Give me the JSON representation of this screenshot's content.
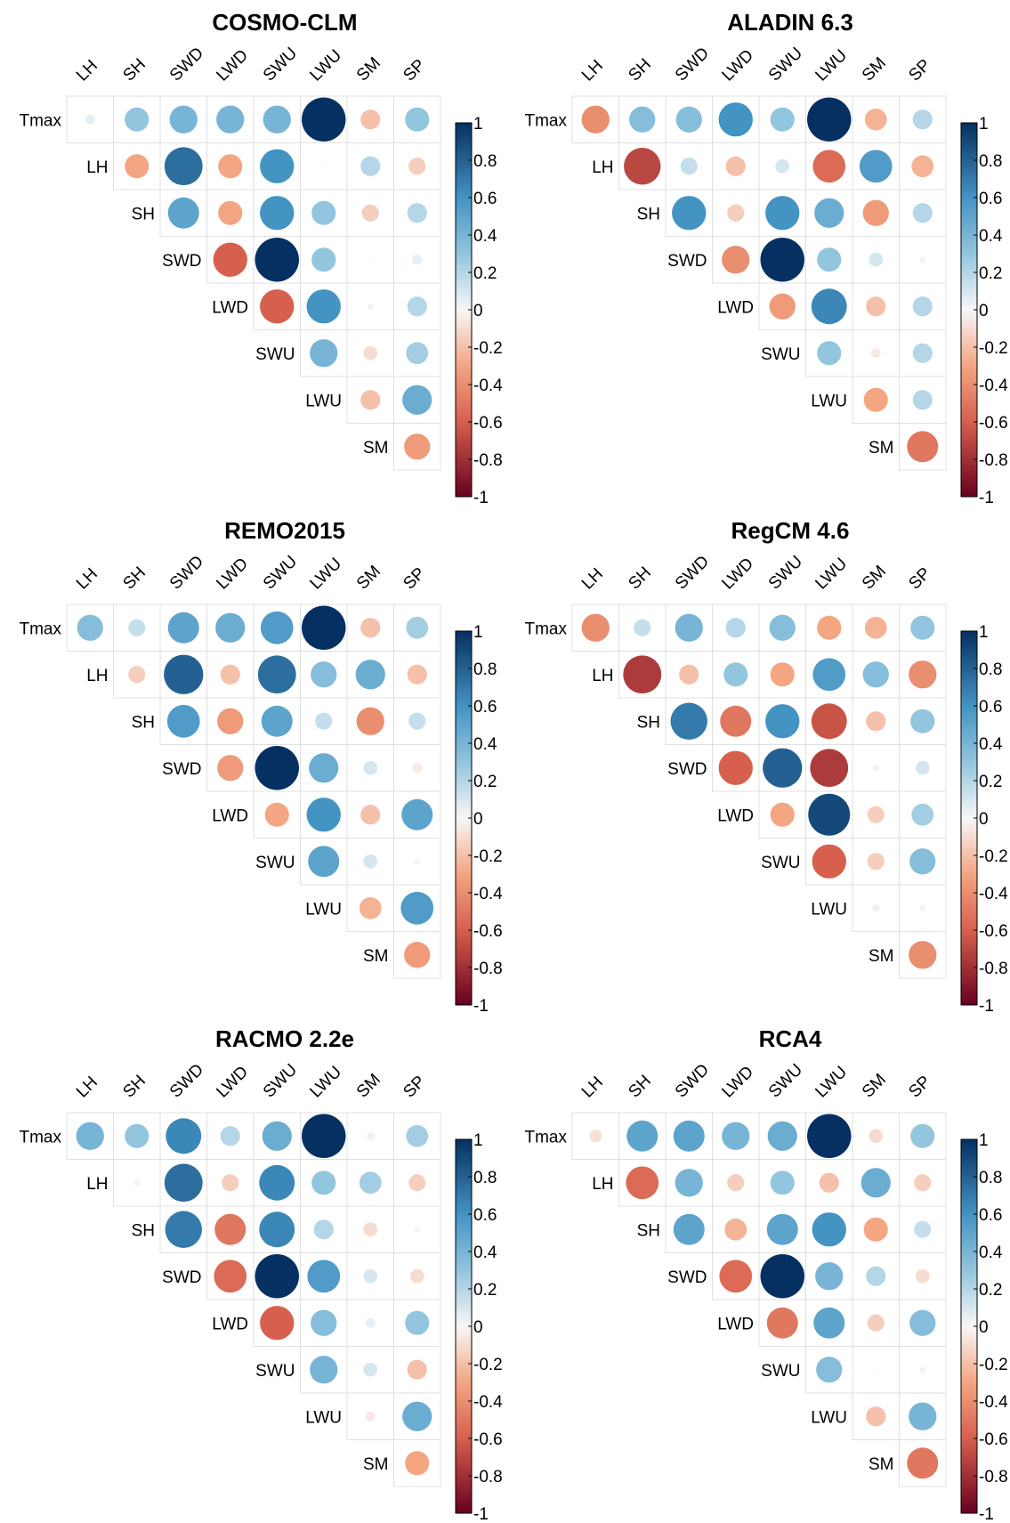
{
  "figure": {
    "variables": [
      "Tmax",
      "LH",
      "SH",
      "SWD",
      "LWD",
      "SWU",
      "LWU",
      "SM",
      "SP"
    ],
    "colorbar_ticks": [
      "1",
      "0.8",
      "0.6",
      "0.4",
      "0.2",
      "0",
      "-0.2",
      "-0.4",
      "-0.6",
      "-0.8",
      "-1"
    ],
    "colors": {
      "negative_end": "#67001F",
      "mid_negative": "#D6604D",
      "light_negative": "#F4A582",
      "zero": "#F7F7F7",
      "light_positive": "#92C5DE",
      "mid_positive": "#4393C3",
      "positive_end": "#053061"
    }
  },
  "chart_data": [
    {
      "type": "heatmap",
      "title": "COSMO-CLM",
      "row_labels": [
        "Tmax",
        "LH",
        "SH",
        "SWD",
        "LWD",
        "SWU",
        "LWU",
        "SM"
      ],
      "col_labels": [
        "LH",
        "SH",
        "SWD",
        "LWD",
        "SWU",
        "LWU",
        "SM",
        "SP"
      ],
      "values": [
        [
          0.05,
          0.3,
          0.4,
          0.4,
          0.4,
          1.0,
          -0.2,
          0.3
        ],
        [
          -0.3,
          0.75,
          -0.3,
          0.6,
          0.0,
          0.2,
          -0.15
        ],
        [
          0.5,
          -0.3,
          0.6,
          0.3,
          -0.15,
          0.2
        ],
        [
          -0.6,
          1.0,
          0.3,
          0.0,
          0.05
        ],
        [
          -0.6,
          0.6,
          0.02,
          0.2
        ],
        [
          0.4,
          -0.1,
          0.25
        ],
        [
          -0.2,
          0.45
        ],
        [
          -0.35
        ]
      ],
      "colorbar_range": [
        -1,
        1
      ]
    },
    {
      "type": "heatmap",
      "title": "ALADIN 6.3",
      "row_labels": [
        "Tmax",
        "LH",
        "SH",
        "SWD",
        "LWD",
        "SWU",
        "LWU",
        "SM"
      ],
      "col_labels": [
        "LH",
        "SH",
        "SWD",
        "LWD",
        "SWU",
        "LWU",
        "SM",
        "SP"
      ],
      "values": [
        [
          -0.4,
          0.35,
          0.35,
          0.6,
          0.3,
          1.0,
          -0.25,
          0.2
        ],
        [
          -0.7,
          0.15,
          -0.2,
          0.1,
          -0.55,
          0.55,
          -0.25
        ],
        [
          0.6,
          -0.15,
          0.6,
          0.45,
          -0.35,
          0.2
        ],
        [
          -0.4,
          1.0,
          0.3,
          0.1,
          0.02
        ],
        [
          -0.35,
          0.65,
          -0.2,
          0.2
        ],
        [
          0.3,
          -0.05,
          0.2
        ],
        [
          -0.3,
          0.2
        ],
        [
          -0.5
        ]
      ],
      "colorbar_range": [
        -1,
        1
      ]
    },
    {
      "type": "heatmap",
      "title": "REMO2015",
      "row_labels": [
        "Tmax",
        "LH",
        "SH",
        "SWD",
        "LWD",
        "SWU",
        "LWU",
        "SM"
      ],
      "col_labels": [
        "LH",
        "SH",
        "SWD",
        "LWD",
        "SWU",
        "LWU",
        "SM",
        "SP"
      ],
      "values": [
        [
          0.35,
          0.15,
          0.5,
          0.45,
          0.55,
          1.0,
          -0.2,
          0.25
        ],
        [
          -0.15,
          0.8,
          -0.2,
          0.75,
          0.35,
          0.45,
          -0.2
        ],
        [
          0.55,
          -0.35,
          0.5,
          0.15,
          -0.4,
          0.15
        ],
        [
          -0.35,
          1.0,
          0.45,
          0.1,
          -0.05
        ],
        [
          -0.3,
          0.6,
          -0.2,
          0.5
        ],
        [
          0.5,
          0.1,
          0.02
        ],
        [
          -0.25,
          0.55
        ],
        [
          -0.35
        ]
      ],
      "colorbar_range": [
        -1,
        1
      ]
    },
    {
      "type": "heatmap",
      "title": "RegCM 4.6",
      "row_labels": [
        "Tmax",
        "LH",
        "SH",
        "SWD",
        "LWD",
        "SWU",
        "LWU",
        "SM"
      ],
      "col_labels": [
        "LH",
        "SH",
        "SWD",
        "LWD",
        "SWU",
        "LWU",
        "SM",
        "SP"
      ],
      "values": [
        [
          -0.4,
          0.15,
          0.4,
          0.2,
          0.35,
          -0.3,
          -0.25,
          0.3
        ],
        [
          -0.75,
          -0.2,
          0.3,
          -0.3,
          0.55,
          0.35,
          -0.4
        ],
        [
          0.7,
          -0.5,
          0.6,
          -0.65,
          -0.2,
          0.3
        ],
        [
          -0.6,
          0.8,
          -0.75,
          0.02,
          0.1
        ],
        [
          -0.3,
          0.9,
          -0.15,
          0.25
        ],
        [
          -0.6,
          -0.15,
          0.35
        ],
        [
          0.03,
          0.02
        ],
        [
          -0.4
        ]
      ],
      "colorbar_range": [
        -1,
        1
      ]
    },
    {
      "type": "heatmap",
      "title": "RACMO 2.2e",
      "row_labels": [
        "Tmax",
        "LH",
        "SH",
        "SWD",
        "LWD",
        "SWU",
        "LWU",
        "SM"
      ],
      "col_labels": [
        "LH",
        "SH",
        "SWD",
        "LWD",
        "SWU",
        "LWU",
        "SM",
        "SP"
      ],
      "values": [
        [
          0.4,
          0.3,
          0.65,
          0.2,
          0.45,
          1.0,
          0.03,
          0.25
        ],
        [
          0.02,
          0.75,
          -0.15,
          0.65,
          0.3,
          0.25,
          -0.15
        ],
        [
          0.7,
          -0.5,
          0.65,
          0.2,
          -0.1,
          0.02
        ],
        [
          -0.55,
          1.0,
          0.55,
          0.1,
          -0.1
        ],
        [
          -0.6,
          0.35,
          0.05,
          0.3
        ],
        [
          0.4,
          0.1,
          -0.2
        ],
        [
          -0.05,
          0.45
        ],
        [
          -0.3
        ]
      ],
      "colorbar_range": [
        -1,
        1
      ]
    },
    {
      "type": "heatmap",
      "title": "RCA4",
      "row_labels": [
        "Tmax",
        "LH",
        "SH",
        "SWD",
        "LWD",
        "SWU",
        "LWU",
        "SM"
      ],
      "col_labels": [
        "LH",
        "SH",
        "SWD",
        "LWD",
        "SWU",
        "LWU",
        "SM",
        "SP"
      ],
      "values": [
        [
          -0.08,
          0.5,
          0.5,
          0.4,
          0.45,
          1.0,
          -0.1,
          0.3
        ],
        [
          -0.55,
          0.4,
          -0.15,
          0.3,
          -0.2,
          0.45,
          -0.15
        ],
        [
          0.5,
          -0.25,
          0.5,
          0.6,
          -0.3,
          0.15
        ],
        [
          -0.55,
          1.0,
          0.4,
          0.2,
          -0.1
        ],
        [
          -0.5,
          0.5,
          -0.15,
          0.35
        ],
        [
          0.35,
          0.0,
          0.02
        ],
        [
          -0.2,
          0.4
        ],
        [
          -0.5
        ]
      ],
      "colorbar_range": [
        -1,
        1
      ]
    }
  ]
}
